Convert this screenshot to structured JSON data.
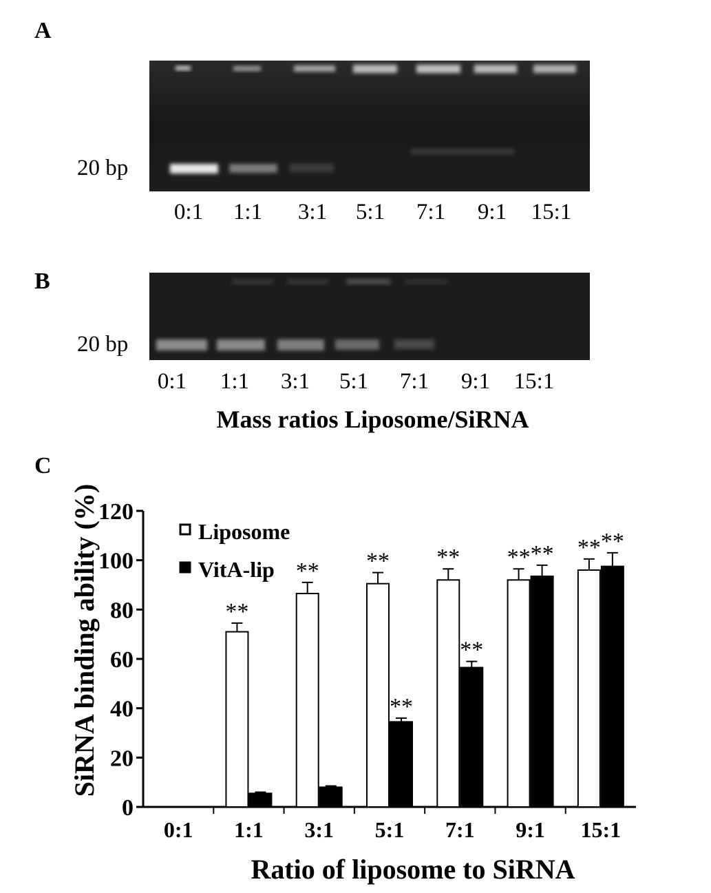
{
  "panels": {
    "a": {
      "letter": "A",
      "band_label": "20 bp",
      "lanes": [
        "0:1",
        "1:1",
        "3:1",
        "5:1",
        "7:1",
        "9:1",
        "15:1"
      ]
    },
    "b": {
      "letter": "B",
      "band_label": "20 bp",
      "lanes": [
        "0:1",
        "1:1",
        "3:1",
        "5:1",
        "7:1",
        "9:1",
        "15:1"
      ],
      "xlabel": "Mass ratios Liposome/SiRNA"
    },
    "c": {
      "letter": "C"
    }
  },
  "colors": {
    "gel_background": "#1b1b1b",
    "band": "#d8d8d8",
    "liposome_fill": "#ffffff",
    "vitalip_fill": "#000000"
  },
  "chart_data": {
    "type": "bar",
    "categories": [
      "0:1",
      "1:1",
      "3:1",
      "5:1",
      "7:1",
      "9:1",
      "15:1"
    ],
    "series": [
      {
        "name": "Liposome",
        "values": [
          0,
          71,
          86.5,
          90.5,
          92,
          92,
          96
        ],
        "errors": [
          0,
          3.5,
          4.5,
          4.5,
          4.5,
          4.5,
          4.5
        ],
        "annotations": [
          "",
          "**",
          "**",
          "**",
          "**",
          "**",
          "**"
        ]
      },
      {
        "name": "VitA-lip",
        "values": [
          0,
          5.5,
          8,
          34.5,
          56.5,
          93.5,
          97.5
        ],
        "errors": [
          0,
          0.5,
          0.5,
          1.5,
          2.5,
          4.5,
          5.5
        ],
        "annotations": [
          "",
          "",
          "",
          "**",
          "**",
          "**",
          "**"
        ]
      }
    ],
    "xlabel": "Ratio of liposome to SiRNA",
    "ylabel": "SiRNA binding ability (%)",
    "ylim": [
      0,
      120
    ],
    "yticks": [
      0,
      20,
      40,
      60,
      80,
      100,
      120
    ],
    "grid": false,
    "legend": "top-left"
  }
}
